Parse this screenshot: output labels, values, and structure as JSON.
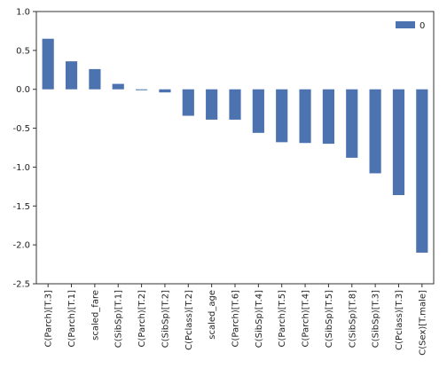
{
  "chart_data": {
    "type": "bar",
    "categories": [
      "C(Parch)[T.3]",
      "C(Parch)[T.1]",
      "scaled_fare",
      "C(SibSp)[T.1]",
      "C(Parch)[T.2]",
      "C(SibSp)[T.2]",
      "C(Pclass)[T.2]",
      "scaled_age",
      "C(Parch)[T.6]",
      "C(SibSp)[T.4]",
      "C(Parch)[T.5]",
      "C(Parch)[T.4]",
      "C(SibSp)[T.5]",
      "C(SibSp)[T.8]",
      "C(SibSp)[T.3]",
      "C(Pclass)[T.3]",
      "C(Sex)[T.male]"
    ],
    "series": [
      {
        "name": "0",
        "color": "#4c72b0",
        "values": [
          0.65,
          0.36,
          0.26,
          0.07,
          -0.01,
          -0.04,
          -0.34,
          -0.39,
          -0.39,
          -0.56,
          -0.68,
          -0.69,
          -0.7,
          -0.88,
          -1.08,
          -1.36,
          -2.1
        ]
      }
    ],
    "ylim": [
      -2.5,
      1.0
    ],
    "yticks": [
      "1.0",
      "0.5",
      "0.0",
      "-0.5",
      "-1.0",
      "-1.5",
      "-2.0",
      "-2.5"
    ],
    "grid": false,
    "legend_position": "top-right",
    "title": "",
    "xlabel": "",
    "ylabel": ""
  }
}
